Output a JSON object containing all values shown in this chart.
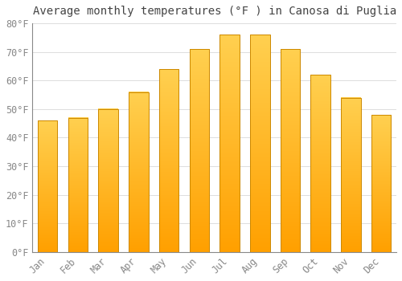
{
  "title": "Average monthly temperatures (°F ) in Canosa di Puglia",
  "months": [
    "Jan",
    "Feb",
    "Mar",
    "Apr",
    "May",
    "Jun",
    "Jul",
    "Aug",
    "Sep",
    "Oct",
    "Nov",
    "Dec"
  ],
  "values": [
    46,
    47,
    50,
    56,
    64,
    71,
    76,
    76,
    71,
    62,
    54,
    48
  ],
  "bar_color_top": "#FFD050",
  "bar_color_bottom": "#FFA000",
  "bar_edge_color": "#CC8800",
  "background_color": "#FFFFFF",
  "grid_color": "#DDDDDD",
  "text_color": "#888888",
  "title_color": "#444444",
  "ylim": [
    0,
    80
  ],
  "ytick_step": 10,
  "title_fontsize": 10,
  "tick_fontsize": 8.5,
  "bar_width": 0.65
}
